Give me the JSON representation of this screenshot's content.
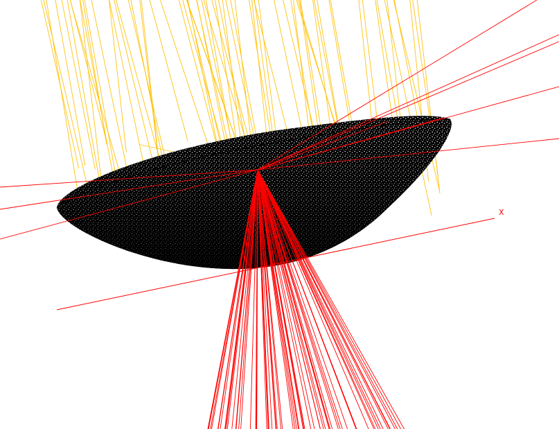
{
  "scene": {
    "background": "#ffffff",
    "mirror_color": "#000000",
    "dot_color": "#ffffff",
    "incident_ray_color": "#ffc20e",
    "reflected_ray_color": "#ff0000",
    "axis_color": "#ff0000",
    "axis_label": "X",
    "incident_ray_count": 70,
    "reflected_ray_count": 70
  }
}
